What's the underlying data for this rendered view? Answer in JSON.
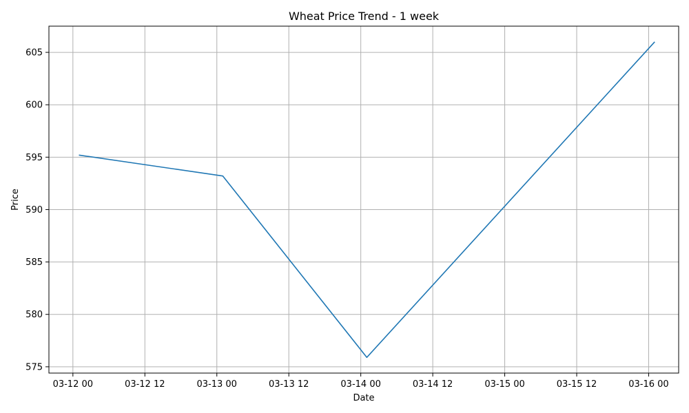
{
  "chart_data": {
    "type": "line",
    "title": "Wheat Price Trend - 1 week",
    "xlabel": "Date",
    "ylabel": "Price",
    "x": [
      "2024-03-12 01:00",
      "2024-03-13 01:00",
      "2024-03-14 01:00",
      "2024-03-16 01:00"
    ],
    "series": [
      {
        "values": [
          595.2,
          593.2,
          575.9,
          606.0
        ],
        "color": "#1f77b4"
      }
    ],
    "x_ticks": [
      "03-12 00",
      "03-12 12",
      "03-13 00",
      "03-13 12",
      "03-14 00",
      "03-14 12",
      "03-15 00",
      "03-15 12",
      "03-16 00"
    ],
    "x_tick_values": [
      "2024-03-12 00:00",
      "2024-03-12 12:00",
      "2024-03-13 00:00",
      "2024-03-13 12:00",
      "2024-03-14 00:00",
      "2024-03-14 12:00",
      "2024-03-15 00:00",
      "2024-03-15 12:00",
      "2024-03-16 00:00"
    ],
    "xlim": [
      "2024-03-11 20:00",
      "2024-03-16 05:00"
    ],
    "y_ticks": [
      575,
      580,
      585,
      590,
      595,
      600,
      605
    ],
    "ylim": [
      574.4,
      607.5
    ],
    "grid": true,
    "legend": "none",
    "grid_color": "#b0b0b0",
    "axis_color": "#000000"
  }
}
